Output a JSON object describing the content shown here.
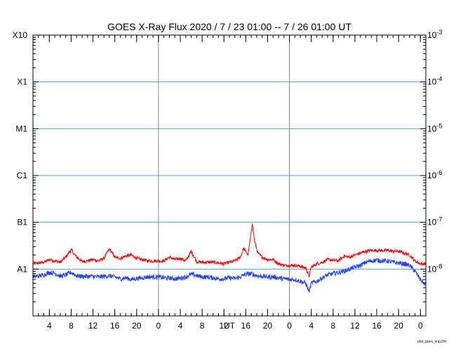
{
  "chart_data": {
    "type": "line",
    "title": "GOES X-Ray Flux   2020  /  7  /  23    01:00 --   7  /  26    01:00    UT",
    "xlabel": "UT",
    "footer": "plot_goes_xray2m",
    "x_range_hours": [
      0,
      72
    ],
    "x_ticks": [
      {
        "hour": 3,
        "label": "4"
      },
      {
        "hour": 7,
        "label": "8"
      },
      {
        "hour": 11,
        "label": "12"
      },
      {
        "hour": 15,
        "label": "16"
      },
      {
        "hour": 19,
        "label": "20"
      },
      {
        "hour": 23,
        "label": "0"
      },
      {
        "hour": 27,
        "label": "4"
      },
      {
        "hour": 31,
        "label": "8"
      },
      {
        "hour": 35,
        "label": "12"
      },
      {
        "hour": 39,
        "label": "16"
      },
      {
        "hour": 43,
        "label": "20"
      },
      {
        "hour": 47,
        "label": "0"
      },
      {
        "hour": 51,
        "label": "4"
      },
      {
        "hour": 55,
        "label": "8"
      },
      {
        "hour": 59,
        "label": "12"
      },
      {
        "hour": 63,
        "label": "16"
      },
      {
        "hour": 67,
        "label": "20"
      },
      {
        "hour": 71,
        "label": "0"
      }
    ],
    "day_boundaries_hours": [
      23,
      47
    ],
    "y_scale": "log",
    "y_range_exp": [
      -9,
      -3
    ],
    "left_labels": [
      {
        "exp": -3,
        "label": "X10"
      },
      {
        "exp": -4,
        "label": "X1"
      },
      {
        "exp": -5,
        "label": "M1"
      },
      {
        "exp": -6,
        "label": "C1"
      },
      {
        "exp": -7,
        "label": "B1"
      },
      {
        "exp": -8,
        "label": "A1"
      }
    ],
    "right_labels": [
      {
        "exp": -3,
        "label": "10",
        "sup": "-3"
      },
      {
        "exp": -4,
        "label": "10",
        "sup": "-4"
      },
      {
        "exp": -5,
        "label": "10",
        "sup": "-5"
      },
      {
        "exp": -6,
        "label": "10",
        "sup": "-6"
      },
      {
        "exp": -7,
        "label": "10",
        "sup": "-7"
      },
      {
        "exp": -8,
        "label": "10",
        "sup": "-8"
      }
    ],
    "grid_exps": [
      -4,
      -5,
      -6,
      -7,
      -8
    ],
    "colors": {
      "long": "#ff0000",
      "short": "#2040ff",
      "grid": "#44aadd",
      "daylines": "#888888"
    },
    "series": [
      {
        "color_key": "long",
        "points": [
          [
            0,
            1.3e-08
          ],
          [
            2,
            1.4e-08
          ],
          [
            3,
            1.6e-08
          ],
          [
            4,
            1.5e-08
          ],
          [
            5,
            1.4e-08
          ],
          [
            6,
            1.8e-08
          ],
          [
            7,
            2.6e-08
          ],
          [
            7.8,
            1.9e-08
          ],
          [
            9,
            1.45e-08
          ],
          [
            10,
            1.5e-08
          ],
          [
            11,
            1.6e-08
          ],
          [
            12,
            1.5e-08
          ],
          [
            13,
            1.7e-08
          ],
          [
            14,
            2.7e-08
          ],
          [
            15,
            1.8e-08
          ],
          [
            16,
            1.7e-08
          ],
          [
            17,
            1.9e-08
          ],
          [
            18,
            2e-08
          ],
          [
            19,
            1.7e-08
          ],
          [
            20,
            1.6e-08
          ],
          [
            21,
            1.5e-08
          ],
          [
            22,
            1.5e-08
          ],
          [
            23,
            1.5e-08
          ],
          [
            24,
            1.5e-08
          ],
          [
            25,
            1.8e-08
          ],
          [
            26,
            1.6e-08
          ],
          [
            27,
            1.7e-08
          ],
          [
            28,
            1.5e-08
          ],
          [
            29,
            2.4e-08
          ],
          [
            30,
            1.45e-08
          ],
          [
            31,
            1.4e-08
          ],
          [
            32,
            1.4e-08
          ],
          [
            33,
            1.4e-08
          ],
          [
            34,
            1.35e-08
          ],
          [
            35,
            1.3e-08
          ],
          [
            36,
            1.4e-08
          ],
          [
            37,
            1.5e-08
          ],
          [
            38,
            1.8e-08
          ],
          [
            38.6,
            2.8e-08
          ],
          [
            39.4,
            2e-08
          ],
          [
            39.9,
            5e-08
          ],
          [
            40.2,
            1e-07
          ],
          [
            40.6,
            4e-08
          ],
          [
            41.2,
            2.2e-08
          ],
          [
            42,
            1.8e-08
          ],
          [
            43,
            1.6e-08
          ],
          [
            44,
            1.6e-08
          ],
          [
            45,
            1.3e-08
          ],
          [
            46,
            1.2e-08
          ],
          [
            47,
            1.2e-08
          ],
          [
            48,
            1.2e-08
          ],
          [
            49,
            1.15e-08
          ],
          [
            50,
            1.05e-08
          ],
          [
            50.6,
            7e-09
          ],
          [
            51,
            1.1e-08
          ],
          [
            52,
            1.3e-08
          ],
          [
            53,
            1.4e-08
          ],
          [
            54,
            1.6e-08
          ],
          [
            55,
            1.55e-08
          ],
          [
            56,
            1.5e-08
          ],
          [
            57,
            1.9e-08
          ],
          [
            58,
            1.8e-08
          ],
          [
            59,
            2e-08
          ],
          [
            60,
            2.2e-08
          ],
          [
            61,
            2.4e-08
          ],
          [
            62,
            2.5e-08
          ],
          [
            63,
            2.5e-08
          ],
          [
            64,
            2.5e-08
          ],
          [
            65,
            2.5e-08
          ],
          [
            66,
            2.4e-08
          ],
          [
            67,
            2.4e-08
          ],
          [
            68,
            2.2e-08
          ],
          [
            69,
            2e-08
          ],
          [
            70,
            1.5e-08
          ],
          [
            71,
            1.3e-08
          ],
          [
            72,
            1.3e-08
          ]
        ]
      },
      {
        "color_key": "short",
        "points": [
          [
            0,
            6.8e-09
          ],
          [
            2,
            7.5e-09
          ],
          [
            3,
            8.5e-09
          ],
          [
            4,
            8.2e-09
          ],
          [
            5,
            7e-09
          ],
          [
            6,
            7.5e-09
          ],
          [
            7,
            8.5e-09
          ],
          [
            8,
            7.2e-09
          ],
          [
            9,
            7e-09
          ],
          [
            10,
            7e-09
          ],
          [
            11,
            7e-09
          ],
          [
            12,
            6.8e-09
          ],
          [
            13,
            7e-09
          ],
          [
            14,
            7.2e-09
          ],
          [
            15,
            6.8e-09
          ],
          [
            16,
            6.2e-09
          ],
          [
            17,
            6.5e-09
          ],
          [
            18,
            6e-09
          ],
          [
            19,
            6.3e-09
          ],
          [
            20,
            6.5e-09
          ],
          [
            21,
            6.8e-09
          ],
          [
            22,
            6.8e-09
          ],
          [
            23,
            6.8e-09
          ],
          [
            24,
            6.5e-09
          ],
          [
            25,
            6.5e-09
          ],
          [
            26,
            6.2e-09
          ],
          [
            27,
            6.4e-09
          ],
          [
            28,
            6.8e-09
          ],
          [
            29,
            7.8e-09
          ],
          [
            30,
            7.2e-09
          ],
          [
            31,
            6.8e-09
          ],
          [
            32,
            6.8e-09
          ],
          [
            33,
            6.5e-09
          ],
          [
            34,
            6.2e-09
          ],
          [
            35,
            6.2e-09
          ],
          [
            36,
            6.5e-09
          ],
          [
            37,
            6.3e-09
          ],
          [
            38,
            6.8e-09
          ],
          [
            39,
            7.8e-09
          ],
          [
            40,
            8e-09
          ],
          [
            41,
            7.2e-09
          ],
          [
            42,
            7e-09
          ],
          [
            43,
            6.8e-09
          ],
          [
            44,
            6.8e-09
          ],
          [
            45,
            6.5e-09
          ],
          [
            46,
            6.2e-09
          ],
          [
            47,
            6e-09
          ],
          [
            48,
            6e-09
          ],
          [
            49,
            5.5e-09
          ],
          [
            50,
            5e-09
          ],
          [
            50.6,
            3.3e-09
          ],
          [
            51,
            5e-09
          ],
          [
            52,
            5.5e-09
          ],
          [
            53,
            6.5e-09
          ],
          [
            54,
            7.5e-09
          ],
          [
            55,
            8e-09
          ],
          [
            56,
            8.5e-09
          ],
          [
            57,
            9e-09
          ],
          [
            58,
            1e-08
          ],
          [
            59,
            1.1e-08
          ],
          [
            60,
            1.2e-08
          ],
          [
            61,
            1.4e-08
          ],
          [
            62,
            1.5e-08
          ],
          [
            63,
            1.55e-08
          ],
          [
            64,
            1.5e-08
          ],
          [
            65,
            1.5e-08
          ],
          [
            66,
            1.4e-08
          ],
          [
            67,
            1.35e-08
          ],
          [
            68,
            1.3e-08
          ],
          [
            69,
            1.2e-08
          ],
          [
            70,
            9e-09
          ],
          [
            71,
            6e-09
          ],
          [
            72,
            4.5e-09
          ]
        ]
      }
    ]
  }
}
